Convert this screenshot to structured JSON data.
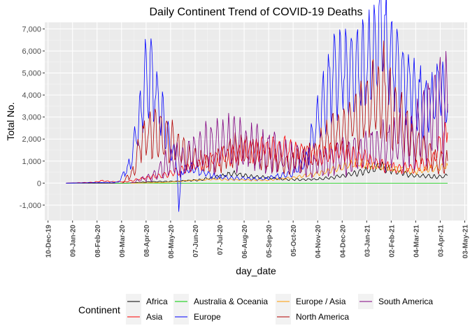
{
  "chart_data": {
    "type": "line",
    "title": "Daily Continent Trend of COVID-19 Deaths",
    "xlabel": "day_date",
    "ylabel": "Total No.",
    "x_ticks": [
      "10-Dec-19",
      "09-Jan-20",
      "08-Feb-20",
      "09-Mar-20",
      "08-Apr-20",
      "08-May-20",
      "07-Jun-20",
      "07-Jul-20",
      "06-Aug-20",
      "05-Sep-20",
      "05-Oct-20",
      "04-Nov-20",
      "04-Dec-20",
      "03-Jan-21",
      "02-Feb-21",
      "04-Mar-21",
      "03-Apr-21",
      "03-May-21"
    ],
    "y_ticks": [
      "-1,000",
      "0",
      "1,000",
      "2,000",
      "3,000",
      "4,000",
      "5,000",
      "6,000",
      "7,000"
    ],
    "xlim": [
      "2019-12-06",
      "2021-05-06"
    ],
    "ylim": [
      -1700,
      7300
    ],
    "legend_title": "Continent",
    "legend_position": "bottom",
    "grid": true,
    "series": [
      {
        "name": "Africa",
        "color": "#000000",
        "points": [
          [
            "2020-01-01",
            0
          ],
          [
            "2020-03-15",
            0
          ],
          [
            "2020-04-15",
            60
          ],
          [
            "2020-05-15",
            80
          ],
          [
            "2020-06-15",
            150
          ],
          [
            "2020-07-10",
            330
          ],
          [
            "2020-07-25",
            450
          ],
          [
            "2020-08-10",
            300
          ],
          [
            "2020-09-01",
            250
          ],
          [
            "2020-10-01",
            160
          ],
          [
            "2020-11-01",
            170
          ],
          [
            "2020-12-01",
            300
          ],
          [
            "2020-12-20",
            430
          ],
          [
            "2021-01-10",
            620
          ],
          [
            "2021-01-20",
            780
          ],
          [
            "2021-02-05",
            550
          ],
          [
            "2021-03-01",
            340
          ],
          [
            "2021-04-01",
            280
          ],
          [
            "2021-04-12",
            350
          ]
        ]
      },
      {
        "name": "Asia",
        "color": "#ff0000",
        "points": [
          [
            "2020-01-01",
            0
          ],
          [
            "2020-02-05",
            40
          ],
          [
            "2020-02-15",
            110
          ],
          [
            "2020-02-25",
            60
          ],
          [
            "2020-03-15",
            60
          ],
          [
            "2020-04-05",
            220
          ],
          [
            "2020-05-01",
            380
          ],
          [
            "2020-06-01",
            700
          ],
          [
            "2020-07-01",
            1100
          ],
          [
            "2020-08-01",
            1400
          ],
          [
            "2020-09-01",
            1600
          ],
          [
            "2020-10-01",
            1500
          ],
          [
            "2020-11-01",
            1300
          ],
          [
            "2020-12-01",
            1400
          ],
          [
            "2021-01-01",
            1100
          ],
          [
            "2021-02-01",
            700
          ],
          [
            "2021-03-01",
            700
          ],
          [
            "2021-03-25",
            1000
          ],
          [
            "2021-04-06",
            2000
          ],
          [
            "2021-04-12",
            2300
          ]
        ]
      },
      {
        "name": "Australia & Oceania",
        "color": "#00cc00",
        "points": [
          [
            "2020-03-01",
            0
          ],
          [
            "2021-04-12",
            0
          ]
        ]
      },
      {
        "name": "Europe",
        "color": "#0000ff",
        "points": [
          [
            "2020-01-01",
            0
          ],
          [
            "2020-03-05",
            40
          ],
          [
            "2020-03-20",
            900
          ],
          [
            "2020-03-30",
            2700
          ],
          [
            "2020-04-05",
            4200
          ],
          [
            "2020-04-10",
            5200
          ],
          [
            "2020-04-20",
            4000
          ],
          [
            "2020-05-01",
            2500
          ],
          [
            "2020-05-10",
            1500
          ],
          [
            "2020-05-16",
            800
          ],
          [
            "2020-05-18",
            -1300
          ],
          [
            "2020-05-21",
            500
          ],
          [
            "2020-06-01",
            700
          ],
          [
            "2020-07-01",
            300
          ],
          [
            "2020-08-01",
            200
          ],
          [
            "2020-09-01",
            200
          ],
          [
            "2020-10-01",
            400
          ],
          [
            "2020-10-20",
            1000
          ],
          [
            "2020-11-01",
            2500
          ],
          [
            "2020-11-20",
            4500
          ],
          [
            "2020-12-01",
            5000
          ],
          [
            "2020-12-20",
            4800
          ],
          [
            "2021-01-10",
            5800
          ],
          [
            "2021-01-20",
            6950
          ],
          [
            "2021-02-01",
            5500
          ],
          [
            "2021-03-01",
            4000
          ],
          [
            "2021-03-25",
            3500
          ],
          [
            "2021-04-01",
            4500
          ],
          [
            "2021-04-12",
            3600
          ]
        ]
      },
      {
        "name": "Europe / Asia",
        "color": "#ff9900",
        "points": [
          [
            "2020-03-20",
            0
          ],
          [
            "2020-05-01",
            30
          ],
          [
            "2020-06-01",
            120
          ],
          [
            "2020-07-01",
            180
          ],
          [
            "2020-08-01",
            150
          ],
          [
            "2020-09-01",
            130
          ],
          [
            "2020-10-01",
            230
          ],
          [
            "2020-11-01",
            400
          ],
          [
            "2020-12-01",
            700
          ],
          [
            "2020-12-20",
            900
          ],
          [
            "2021-01-01",
            850
          ],
          [
            "2021-02-01",
            700
          ],
          [
            "2021-03-01",
            500
          ],
          [
            "2021-04-01",
            700
          ],
          [
            "2021-04-12",
            800
          ]
        ]
      },
      {
        "name": "North America",
        "color": "#b30000",
        "points": [
          [
            "2020-03-10",
            0
          ],
          [
            "2020-03-25",
            600
          ],
          [
            "2020-04-01",
            1800
          ],
          [
            "2020-04-15",
            2300
          ],
          [
            "2020-05-01",
            2100
          ],
          [
            "2020-06-01",
            1100
          ],
          [
            "2020-07-01",
            900
          ],
          [
            "2020-07-20",
            1400
          ],
          [
            "2020-08-05",
            1500
          ],
          [
            "2020-09-01",
            1100
          ],
          [
            "2020-10-01",
            900
          ],
          [
            "2020-11-01",
            1300
          ],
          [
            "2020-12-01",
            2400
          ],
          [
            "2021-01-10",
            3700
          ],
          [
            "2021-01-20",
            4200
          ],
          [
            "2021-02-10",
            3200
          ],
          [
            "2021-03-01",
            1800
          ],
          [
            "2021-04-01",
            900
          ],
          [
            "2021-04-12",
            1000
          ]
        ]
      },
      {
        "name": "South America",
        "color": "#800080",
        "points": [
          [
            "2020-03-20",
            0
          ],
          [
            "2020-04-15",
            300
          ],
          [
            "2020-05-01",
            800
          ],
          [
            "2020-06-01",
            1300
          ],
          [
            "2020-07-01",
            1800
          ],
          [
            "2020-08-01",
            1800
          ],
          [
            "2020-09-01",
            1500
          ],
          [
            "2020-10-01",
            1100
          ],
          [
            "2020-11-01",
            800
          ],
          [
            "2020-12-01",
            1100
          ],
          [
            "2021-01-01",
            1400
          ],
          [
            "2021-02-01",
            1700
          ],
          [
            "2021-03-01",
            2200
          ],
          [
            "2021-03-20",
            3000
          ],
          [
            "2021-04-01",
            3800
          ],
          [
            "2021-04-12",
            3200
          ]
        ]
      }
    ]
  }
}
